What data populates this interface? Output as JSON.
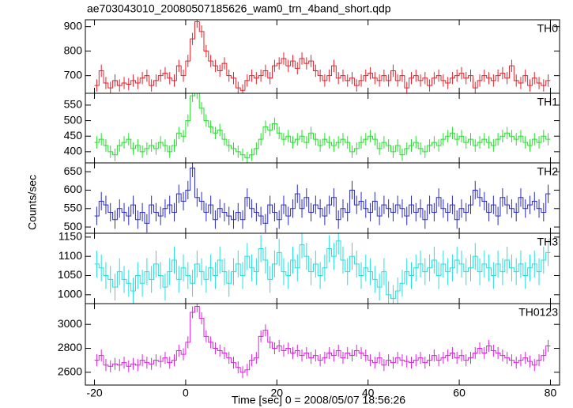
{
  "chart_data": {
    "type": "step",
    "title": "ae703043010_20080507185626_wam0_trn_4band_short.qdp",
    "xlabel": "Time [sec] 0 = 2008/05/07 18:56:26",
    "ylabel": "Counts/sec",
    "xlim": [
      -22,
      82
    ],
    "xticks": [
      -20,
      0,
      20,
      40,
      60,
      80
    ],
    "x": [
      -19.5,
      -18.5,
      -17.5,
      -16.5,
      -15.5,
      -14.5,
      -13.5,
      -12.5,
      -11.5,
      -10.5,
      -9.5,
      -8.5,
      -7.5,
      -6.5,
      -5.5,
      -4.5,
      -3.5,
      -2.5,
      -1.5,
      -0.5,
      0.5,
      1.5,
      2.5,
      3.5,
      4.5,
      5.5,
      6.5,
      7.5,
      8.5,
      9.5,
      10.5,
      11.5,
      12.5,
      13.5,
      14.5,
      15.5,
      16.5,
      17.5,
      18.5,
      19.5,
      20.5,
      21.5,
      22.5,
      23.5,
      24.5,
      25.5,
      26.5,
      27.5,
      28.5,
      29.5,
      30.5,
      31.5,
      32.5,
      33.5,
      34.5,
      35.5,
      36.5,
      37.5,
      38.5,
      39.5,
      40.5,
      41.5,
      42.5,
      43.5,
      44.5,
      45.5,
      46.5,
      47.5,
      48.5,
      49.5,
      50.5,
      51.5,
      52.5,
      53.5,
      54.5,
      55.5,
      56.5,
      57.5,
      58.5,
      59.5,
      60.5,
      61.5,
      62.5,
      63.5,
      64.5,
      65.5,
      66.5,
      67.5,
      68.5,
      69.5,
      70.5,
      71.5,
      72.5,
      73.5,
      74.5,
      75.5,
      76.5,
      77.5,
      78.5,
      79.5
    ],
    "panels": [
      {
        "name": "TH0",
        "color": "#e8202a",
        "error": 25,
        "ylim": [
          628,
          928
        ],
        "yticks": [
          700,
          800,
          900
        ],
        "values": [
          660,
          720,
          670,
          650,
          680,
          660,
          670,
          665,
          680,
          670,
          690,
          700,
          660,
          680,
          700,
          710,
          690,
          680,
          740,
          700,
          760,
          850,
          920,
          880,
          800,
          760,
          740,
          720,
          750,
          700,
          690,
          650,
          640,
          680,
          700,
          690,
          700,
          720,
          690,
          740,
          750,
          770,
          740,
          760,
          730,
          770,
          750,
          760,
          720,
          700,
          680,
          700,
          740,
          690,
          700,
          680,
          690,
          660,
          680,
          700,
          710,
          690,
          680,
          700,
          680,
          720,
          680,
          700,
          650,
          690,
          700,
          680,
          690,
          660,
          690,
          700,
          680,
          670,
          690,
          700,
          710,
          690,
          700,
          650,
          680,
          700,
          690,
          680,
          700,
          710,
          690,
          740,
          680,
          670,
          700,
          660,
          690,
          670,
          660,
          680
        ]
      },
      {
        "name": "TH1",
        "color": "#22e02a",
        "error": 20,
        "ylim": [
          364,
          588
        ],
        "yticks": [
          400,
          450,
          500,
          550
        ],
        "values": [
          430,
          440,
          420,
          400,
          390,
          420,
          430,
          440,
          410,
          420,
          400,
          410,
          420,
          410,
          430,
          420,
          400,
          420,
          460,
          450,
          500,
          580,
          590,
          540,
          500,
          480,
          460,
          470,
          440,
          420,
          410,
          400,
          390,
          380,
          390,
          410,
          440,
          480,
          470,
          490,
          460,
          440,
          450,
          430,
          440,
          450,
          430,
          460,
          440,
          420,
          440,
          430,
          420,
          430,
          440,
          430,
          400,
          410,
          430,
          440,
          450,
          440,
          410,
          430,
          420,
          400,
          420,
          390,
          410,
          420,
          430,
          410,
          400,
          420,
          430,
          420,
          440,
          450,
          460,
          440,
          450,
          430,
          440,
          420,
          430,
          440,
          430,
          420,
          440,
          450,
          460,
          450,
          440,
          450,
          430,
          420,
          440,
          430,
          450,
          440
        ]
      },
      {
        "name": "TH2",
        "color": "#2a2ac8",
        "error": 25,
        "ylim": [
          483,
          674
        ],
        "yticks": [
          500,
          550,
          600,
          650
        ],
        "values": [
          530,
          570,
          560,
          540,
          520,
          550,
          540,
          530,
          560,
          520,
          540,
          510,
          560,
          540,
          530,
          550,
          560,
          540,
          590,
          570,
          600,
          660,
          580,
          570,
          540,
          560,
          520,
          550,
          540,
          530,
          520,
          540,
          520,
          580,
          550,
          540,
          530,
          510,
          560,
          540,
          520,
          560,
          530,
          550,
          590,
          550,
          580,
          540,
          560,
          550,
          530,
          560,
          580,
          520,
          550,
          540,
          600,
          560,
          570,
          550,
          540,
          570,
          530,
          560,
          550,
          540,
          560,
          550,
          530,
          560,
          540,
          550,
          520,
          560,
          540,
          580,
          550,
          540,
          560,
          520,
          550,
          540,
          560,
          600,
          580,
          570,
          540,
          560,
          530,
          580,
          560,
          550,
          540,
          580,
          550,
          560,
          570,
          550,
          540,
          590
        ]
      },
      {
        "name": "TH3",
        "color": "#22e0e0",
        "error": 35,
        "ylim": [
          977,
          1160
        ],
        "yticks": [
          1000,
          1050,
          1100,
          1150
        ],
        "values": [
          1080,
          1070,
          1050,
          1040,
          1020,
          1060,
          1040,
          1030,
          1010,
          1050,
          1030,
          1060,
          1040,
          1080,
          1050,
          1020,
          1060,
          1090,
          1040,
          1070,
          1050,
          1030,
          1080,
          1060,
          1040,
          1070,
          1050,
          1090,
          1060,
          1030,
          1060,
          1080,
          1050,
          1100,
          1070,
          1060,
          1120,
          1090,
          1040,
          1080,
          1110,
          1060,
          1050,
          1090,
          1070,
          1130,
          1100,
          1060,
          1080,
          1050,
          1070,
          1120,
          1100,
          1140,
          1090,
          1060,
          1100,
          1080,
          1050,
          1070,
          1060,
          1040,
          1020,
          1060,
          1000,
          990,
          1010,
          1030,
          1060,
          1050,
          1070,
          1080,
          1060,
          1070,
          1090,
          1050,
          1080,
          1060,
          1070,
          1090,
          1080,
          1060,
          1070,
          1100,
          1060,
          1080,
          1070,
          1050,
          1080,
          1060,
          1090,
          1070,
          1060,
          1080,
          1050,
          1070,
          1080,
          1060,
          1090,
          1110
        ]
      },
      {
        "name": "TH0123",
        "color": "#e020e0",
        "error": 50,
        "ylim": [
          2493,
          3173
        ],
        "yticks": [
          2600,
          2800,
          3000
        ],
        "values": [
          2700,
          2740,
          2660,
          2650,
          2670,
          2660,
          2680,
          2650,
          2670,
          2660,
          2700,
          2680,
          2670,
          2700,
          2690,
          2720,
          2680,
          2700,
          2780,
          2750,
          2850,
          3100,
          3150,
          3050,
          2900,
          2850,
          2800,
          2780,
          2760,
          2720,
          2680,
          2640,
          2600,
          2620,
          2700,
          2720,
          2900,
          2950,
          2850,
          2800,
          2820,
          2780,
          2800,
          2760,
          2780,
          2740,
          2760,
          2720,
          2740,
          2700,
          2720,
          2760,
          2740,
          2780,
          2720,
          2760,
          2740,
          2780,
          2760,
          2740,
          2700,
          2680,
          2720,
          2660,
          2700,
          2680,
          2720,
          2700,
          2690,
          2680,
          2700,
          2720,
          2680,
          2700,
          2740,
          2700,
          2720,
          2740,
          2760,
          2720,
          2740,
          2700,
          2720,
          2760,
          2800,
          2760,
          2820,
          2780,
          2760,
          2740,
          2720,
          2700,
          2680,
          2700,
          2720,
          2690,
          2660,
          2700,
          2740,
          2820
        ]
      }
    ]
  }
}
